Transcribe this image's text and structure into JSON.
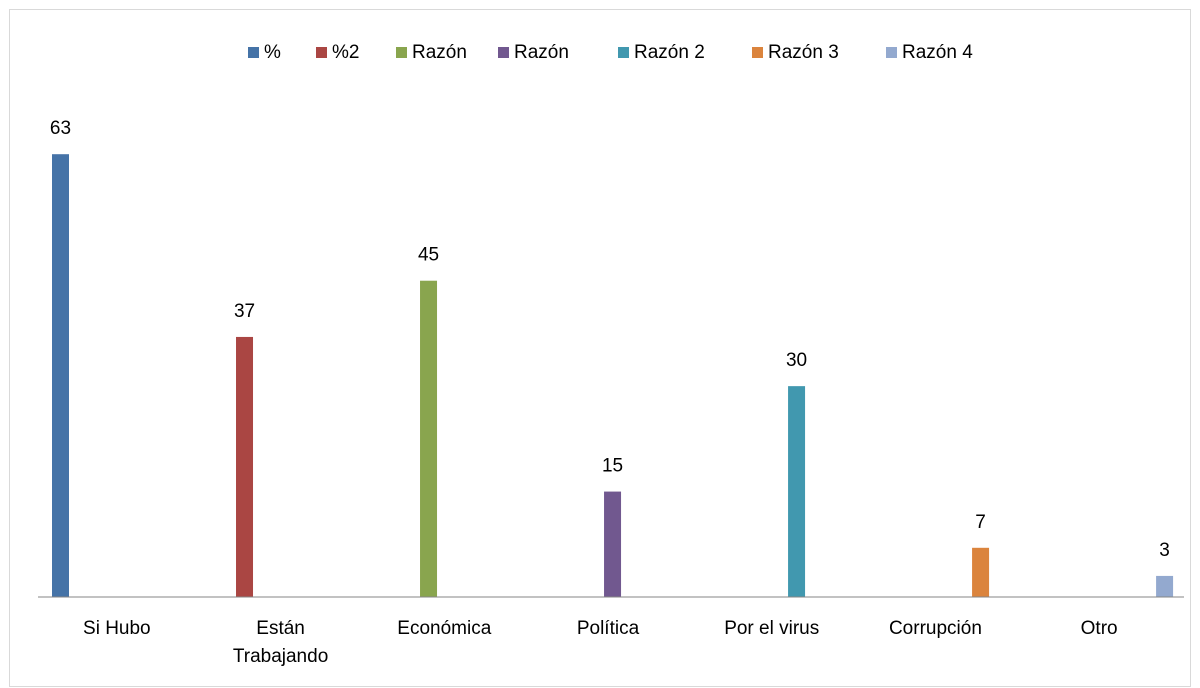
{
  "chart_data": {
    "type": "bar",
    "categories": [
      "Si Hubo",
      "Están Trabajando",
      "Económica",
      "Política",
      "Por el virus",
      "Corrupción",
      "Otro"
    ],
    "series": [
      {
        "name": "%",
        "color": "#4573a7",
        "values": [
          63,
          null,
          null,
          null,
          null,
          null,
          null
        ]
      },
      {
        "name": "%2",
        "color": "#aa4643",
        "values": [
          null,
          37,
          null,
          null,
          null,
          null,
          null
        ]
      },
      {
        "name": "Razón",
        "color": "#89a54e",
        "values": [
          null,
          null,
          45,
          null,
          null,
          null,
          null
        ]
      },
      {
        "name": "Razón",
        "color": "#71588f",
        "values": [
          null,
          null,
          null,
          15,
          null,
          null,
          null
        ]
      },
      {
        "name": "Razón 2",
        "color": "#4198af",
        "values": [
          null,
          null,
          null,
          null,
          30,
          null,
          null
        ]
      },
      {
        "name": "Razón 3",
        "color": "#db843d",
        "values": [
          null,
          null,
          null,
          null,
          null,
          7,
          null
        ]
      },
      {
        "name": "Razón 4",
        "color": "#93a9cf",
        "values": [
          null,
          null,
          null,
          null,
          null,
          null,
          3
        ]
      }
    ],
    "ylim": [
      0,
      70
    ],
    "legend": "top"
  }
}
